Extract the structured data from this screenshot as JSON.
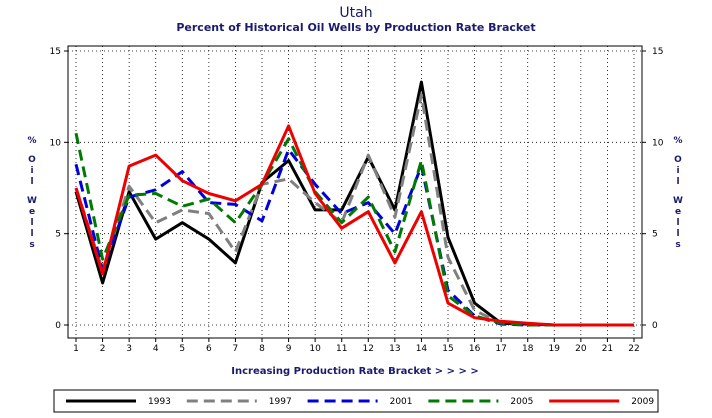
{
  "chart_data": {
    "type": "line",
    "title": "Utah",
    "subtitle": "Percent of Historical Oil Wells by Production Rate Bracket",
    "xlabel": "Increasing Production Rate Bracket > > > >",
    "ylabel": "% O i l  W e l l s",
    "x": [
      1,
      2,
      3,
      4,
      5,
      6,
      7,
      8,
      9,
      10,
      11,
      12,
      13,
      14,
      15,
      16,
      17,
      18,
      19,
      20,
      21,
      22
    ],
    "ylim": [
      0,
      15
    ],
    "yticks": [
      0,
      5,
      10,
      15
    ],
    "grid": true,
    "legend_position": "bottom",
    "series": [
      {
        "name": "1993",
        "color": "#000000",
        "dash": "solid",
        "values": [
          7.3,
          2.3,
          7.3,
          4.7,
          5.6,
          4.7,
          3.4,
          7.8,
          9.0,
          6.3,
          6.3,
          9.2,
          6.3,
          13.3,
          4.8,
          1.2,
          0.1,
          0.05,
          0.0,
          0.0,
          0.0,
          0.0
        ]
      },
      {
        "name": "1997",
        "color": "#808080",
        "dash": "dashed",
        "values": [
          7.5,
          3.0,
          7.6,
          5.6,
          6.3,
          6.1,
          4.0,
          7.7,
          8.0,
          6.7,
          5.6,
          9.3,
          5.9,
          12.6,
          3.7,
          0.8,
          0.1,
          0.05,
          0.0,
          0.0,
          0.0,
          0.0
        ]
      },
      {
        "name": "2001",
        "color": "#0000dd",
        "dash": "dashed",
        "values": [
          8.8,
          3.0,
          7.0,
          7.4,
          8.4,
          6.7,
          6.6,
          5.7,
          9.6,
          7.7,
          6.1,
          6.7,
          5.0,
          8.7,
          1.9,
          0.5,
          0.05,
          0.0,
          0.0,
          0.0,
          0.0,
          0.0
        ]
      },
      {
        "name": "2005",
        "color": "#007a00",
        "dash": "dashed",
        "values": [
          10.5,
          3.6,
          7.1,
          7.2,
          6.5,
          6.9,
          5.6,
          7.7,
          10.2,
          7.3,
          5.6,
          7.0,
          4.0,
          9.0,
          1.6,
          0.5,
          0.1,
          0.0,
          0.0,
          0.0,
          0.0,
          0.0
        ]
      },
      {
        "name": "2009",
        "color": "#ee0000",
        "dash": "solid",
        "values": [
          7.5,
          2.8,
          8.7,
          9.3,
          7.9,
          7.2,
          6.8,
          7.7,
          10.9,
          7.2,
          5.3,
          6.2,
          3.4,
          6.2,
          1.2,
          0.4,
          0.2,
          0.1,
          0.0,
          0.0,
          0.0,
          0.0
        ]
      }
    ]
  }
}
